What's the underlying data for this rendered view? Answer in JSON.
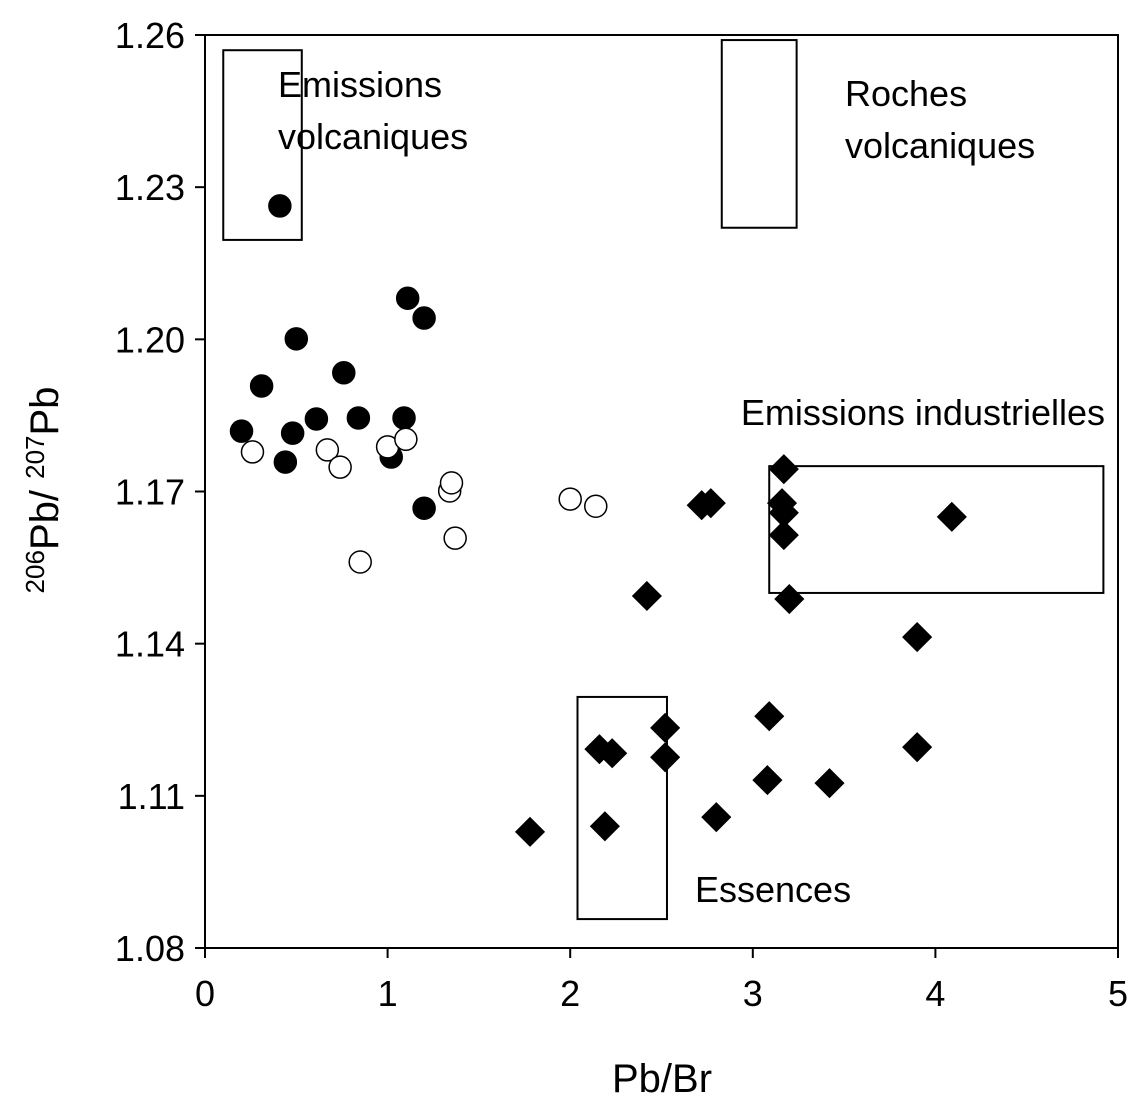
{
  "chart_data": {
    "type": "scatter",
    "xlabel": "Pb/Br",
    "ylabel_parts": [
      {
        "text": "206",
        "sup": true
      },
      {
        "text": "Pb/ ",
        "sup": false
      },
      {
        "text": "207",
        "sup": true
      },
      {
        "text": "Pb",
        "sup": false
      }
    ],
    "xlim": [
      0,
      5
    ],
    "xticks": [
      0,
      1,
      2,
      3,
      4,
      5
    ],
    "ylim": [
      1.08,
      1.26
    ],
    "yticks": [
      1.08,
      1.11,
      1.14,
      1.17,
      {
        "value": 1.2,
        "label": "1.20"
      },
      1.23,
      1.26
    ],
    "series": [
      {
        "marker": "circle",
        "color": "#000000",
        "filled": true,
        "x": [
          0.41,
          0.2,
          0.31,
          0.44,
          0.48,
          0.5,
          0.61,
          0.76,
          0.84,
          1.02,
          1.09,
          1.11,
          1.2,
          1.2
        ],
        "y": [
          1.2263,
          1.1819,
          1.1908,
          1.1758,
          1.1815,
          1.2001,
          1.1843,
          1.1934,
          1.1845,
          1.1768,
          1.1845,
          1.2081,
          1.2042,
          1.1667
        ]
      },
      {
        "marker": "circle",
        "color": "#000000",
        "filled": false,
        "x": [
          0.26,
          0.67,
          0.74,
          1.0,
          1.1,
          1.34,
          1.35,
          1.37,
          0.85,
          2.0,
          2.14
        ],
        "y": [
          1.1778,
          1.1782,
          1.1748,
          1.1788,
          1.1803,
          1.1701,
          1.1717,
          1.1608,
          1.1561,
          1.1685,
          1.1671
        ]
      },
      {
        "marker": "diamond",
        "color": "#000000",
        "filled": true,
        "x": [
          3.17,
          2.77,
          2.72,
          3.16,
          3.17,
          3.17,
          4.09,
          2.42,
          3.2,
          3.9,
          3.09,
          2.52,
          2.16,
          2.23,
          2.52,
          3.9,
          3.08,
          3.42,
          2.19,
          2.8,
          1.78
        ],
        "y": [
          1.1744,
          1.1677,
          1.1673,
          1.1677,
          1.1658,
          1.1614,
          1.165,
          1.1494,
          1.1488,
          1.1413,
          1.1257,
          1.1234,
          1.1192,
          1.1184,
          1.1176,
          1.1196,
          1.1131,
          1.1125,
          1.104,
          1.1058,
          1.1029
        ]
      }
    ],
    "regions": [
      {
        "label": [
          "Emissions",
          "volcaniques"
        ],
        "x": [
          0.1,
          0.53
        ],
        "y": [
          1.2196,
          1.257
        ]
      },
      {
        "label": [
          "Roches",
          "volcaniques"
        ],
        "x": [
          2.83,
          3.24
        ],
        "y": [
          1.222,
          1.259
        ]
      },
      {
        "label": [
          "Emissions industrielles"
        ],
        "x": [
          3.09,
          4.92
        ],
        "y": [
          1.15,
          1.175
        ]
      },
      {
        "label": [
          "Essences"
        ],
        "x": [
          2.04,
          2.53
        ],
        "y": [
          1.0857,
          1.1295
        ]
      }
    ]
  }
}
